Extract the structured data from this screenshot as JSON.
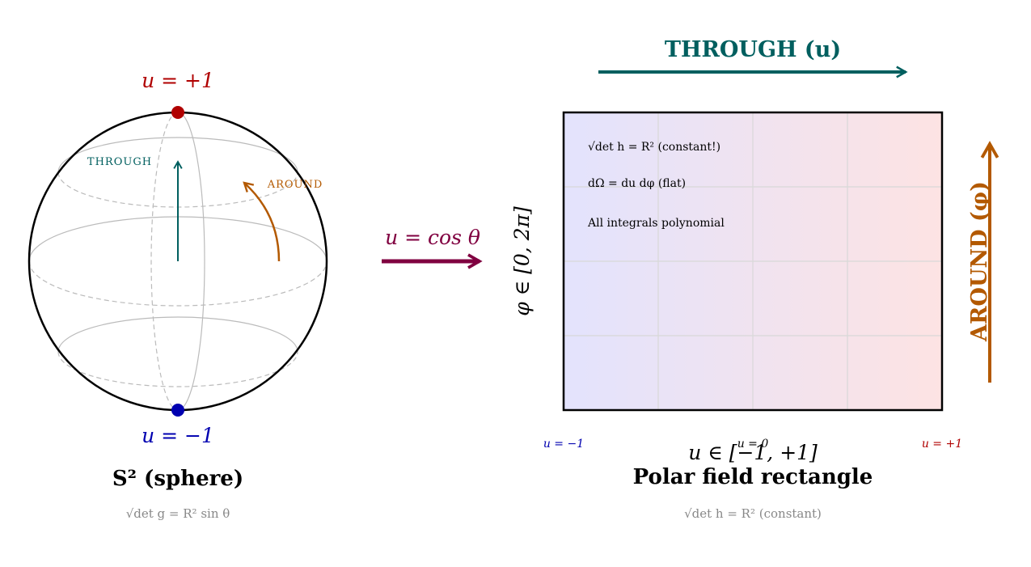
{
  "sphere": {
    "top_label": "u = +1",
    "bottom_label": "u = −1",
    "through_label": "THROUGH",
    "around_label": "AROUND",
    "caption": "S² (sphere)",
    "metric": "√det g = R² sin θ"
  },
  "map_label": "u = cos θ",
  "rectangle": {
    "through_arrow_label": "THROUGH (u)",
    "around_arrow_label": "AROUND (φ)",
    "phi_range": "φ ∈ [0, 2π]",
    "notes": [
      "√det h = R² (constant!)",
      "dΩ = du dφ (flat)",
      "All integrals polynomial"
    ],
    "u_ticks": [
      "u = −1",
      "u = 0",
      "u = +1"
    ],
    "u_range": "u ∈ [−1, +1]",
    "caption": "Polar field rectangle",
    "metric": "√det h = R² (constant)"
  }
}
